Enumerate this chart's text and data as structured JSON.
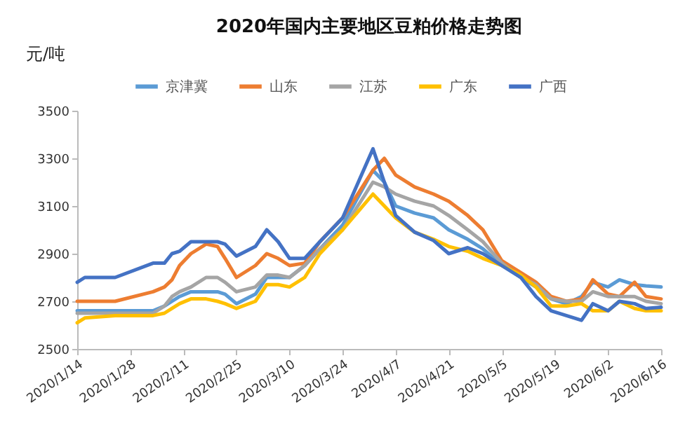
{
  "chart_data": {
    "type": "line",
    "title": "2020年国内主要地区豆粕价格走势图",
    "ylabel": "元/吨",
    "x": [
      "2020-01-14",
      "2020-01-16",
      "2020-01-24",
      "2020-02-03",
      "2020-02-06",
      "2020-02-08",
      "2020-02-10",
      "2020-02-13",
      "2020-02-17",
      "2020-02-20",
      "2020-02-22",
      "2020-02-25",
      "2020-03-01",
      "2020-03-04",
      "2020-03-07",
      "2020-03-10",
      "2020-03-14",
      "2020-03-18",
      "2020-03-24",
      "2020-04-01",
      "2020-04-04",
      "2020-04-07",
      "2020-04-12",
      "2020-04-17",
      "2020-04-21",
      "2020-04-26",
      "2020-04-30",
      "2020-05-05",
      "2020-05-10",
      "2020-05-14",
      "2020-05-18",
      "2020-05-22",
      "2020-05-26",
      "2020-05-29",
      "2020-06-02",
      "2020-06-05",
      "2020-06-09",
      "2020-06-12",
      "2020-06-16"
    ],
    "series": [
      {
        "name": "京津冀",
        "color": "#5b9bd5",
        "values": [
          2660,
          2660,
          2660,
          2660,
          2680,
          2700,
          2720,
          2740,
          2740,
          2740,
          2730,
          2690,
          2730,
          2800,
          2800,
          2800,
          2850,
          2920,
          3020,
          3250,
          3200,
          3100,
          3070,
          3050,
          3000,
          2960,
          2920,
          2850,
          2800,
          2760,
          2710,
          2690,
          2720,
          2780,
          2760,
          2790,
          2770,
          2765,
          2760
        ]
      },
      {
        "name": "山东",
        "color": "#ed7d31",
        "values": [
          2700,
          2700,
          2700,
          2740,
          2760,
          2790,
          2850,
          2900,
          2940,
          2930,
          2880,
          2800,
          2850,
          2900,
          2880,
          2850,
          2860,
          2950,
          3050,
          3250,
          3300,
          3230,
          3180,
          3150,
          3120,
          3060,
          3000,
          2870,
          2820,
          2780,
          2720,
          2700,
          2710,
          2790,
          2730,
          2720,
          2780,
          2720,
          2710
        ]
      },
      {
        "name": "江苏",
        "color": "#a5a5a5",
        "values": [
          2650,
          2650,
          2650,
          2650,
          2680,
          2720,
          2740,
          2760,
          2800,
          2800,
          2780,
          2740,
          2760,
          2810,
          2810,
          2800,
          2850,
          2920,
          3000,
          3200,
          3180,
          3150,
          3120,
          3100,
          3060,
          3000,
          2950,
          2860,
          2800,
          2770,
          2710,
          2700,
          2700,
          2740,
          2720,
          2720,
          2720,
          2700,
          2690
        ]
      },
      {
        "name": "广东",
        "color": "#ffc000",
        "values": [
          2610,
          2630,
          2640,
          2640,
          2650,
          2670,
          2690,
          2710,
          2710,
          2700,
          2690,
          2670,
          2700,
          2770,
          2770,
          2760,
          2800,
          2900,
          3000,
          3150,
          3100,
          3050,
          2990,
          2960,
          2930,
          2910,
          2880,
          2850,
          2810,
          2760,
          2680,
          2680,
          2690,
          2660,
          2660,
          2700,
          2670,
          2660,
          2660
        ]
      },
      {
        "name": "广西",
        "color": "#4472c4",
        "values": [
          2780,
          2800,
          2800,
          2860,
          2860,
          2900,
          2910,
          2950,
          2950,
          2950,
          2940,
          2890,
          2930,
          3000,
          2950,
          2880,
          2880,
          2950,
          3050,
          3340,
          3200,
          3060,
          2990,
          2955,
          2900,
          2925,
          2900,
          2850,
          2800,
          2720,
          2660,
          2640,
          2620,
          2690,
          2660,
          2700,
          2690,
          2670,
          2675
        ]
      }
    ],
    "xlim": [
      "2020-01-14",
      "2020-06-16"
    ],
    "xticks": [
      {
        "value": "2020-01-14",
        "label": "2020/1/14"
      },
      {
        "value": "2020-01-28",
        "label": "2020/1/28"
      },
      {
        "value": "2020-02-11",
        "label": "2020/2/11"
      },
      {
        "value": "2020-02-25",
        "label": "2020/2/25"
      },
      {
        "value": "2020-03-10",
        "label": "2020/3/10"
      },
      {
        "value": "2020-03-24",
        "label": "2020/3/24"
      },
      {
        "value": "2020-04-07",
        "label": "2020/4/7"
      },
      {
        "value": "2020-04-21",
        "label": "2020/4/21"
      },
      {
        "value": "2020-05-05",
        "label": "2020/5/5"
      },
      {
        "value": "2020-05-19",
        "label": "2020/5/19"
      },
      {
        "value": "2020-06-02",
        "label": "2020/6/2"
      },
      {
        "value": "2020-06-16",
        "label": "2020/6/16"
      }
    ],
    "ylim": [
      2500,
      3500
    ],
    "yticks": [
      2500,
      2700,
      2900,
      3100,
      3300,
      3500
    ],
    "legend": "top",
    "grid": false,
    "line_style": "solid",
    "marker": "none"
  }
}
